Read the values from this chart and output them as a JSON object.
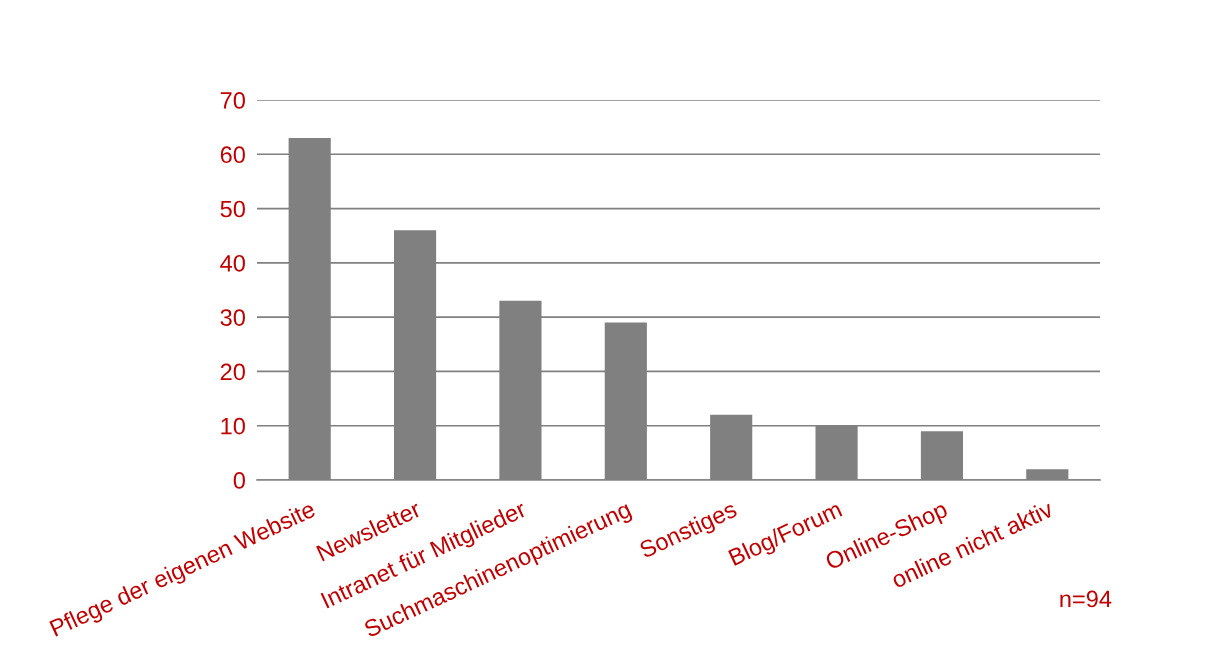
{
  "chart_data": {
    "type": "bar",
    "categories": [
      "Pflege der eigenen Website",
      "Newsletter",
      "Intranet für Mitglieder",
      "Suchmaschinenoptimierung",
      "Sonstiges",
      "Blog/Forum",
      "Online-Shop",
      "online nicht aktiv"
    ],
    "values": [
      63,
      46,
      33,
      29,
      12,
      10,
      9,
      2
    ],
    "color": "#808080",
    "ylim": [
      0,
      70
    ],
    "yticks": [
      0,
      10,
      20,
      30,
      40,
      50,
      60,
      70
    ],
    "grid": "y",
    "legend": false,
    "annotations": [
      "n=94"
    ]
  }
}
